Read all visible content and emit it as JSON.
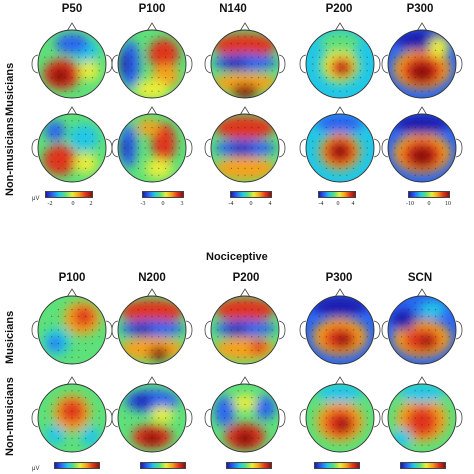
{
  "section1": {
    "columns": [
      "P50",
      "P100",
      "N140",
      "P200",
      "P300"
    ],
    "rows": [
      "Musicians",
      "Non-musicians"
    ],
    "colorbar_unit": "μV",
    "colorbars": [
      [
        "-2",
        "0",
        "2"
      ],
      [
        "-3",
        "0",
        "3"
      ],
      [
        "-4",
        "0",
        "4"
      ],
      [
        "-4",
        "0",
        "4"
      ],
      [
        "-10",
        "0",
        "10"
      ]
    ]
  },
  "section2": {
    "title": "Nociceptive",
    "columns": [
      "P100",
      "N200",
      "P200",
      "P300",
      "SCN"
    ],
    "rows": [
      "Musicians",
      "Non-musicians"
    ],
    "colorbar_unit": "μV"
  },
  "colormap": [
    "#1b1bb0",
    "#2a66f0",
    "#22c7e6",
    "#5ee07a",
    "#e8ee3a",
    "#f4a21a",
    "#e0361a",
    "#8c0f0f"
  ]
}
